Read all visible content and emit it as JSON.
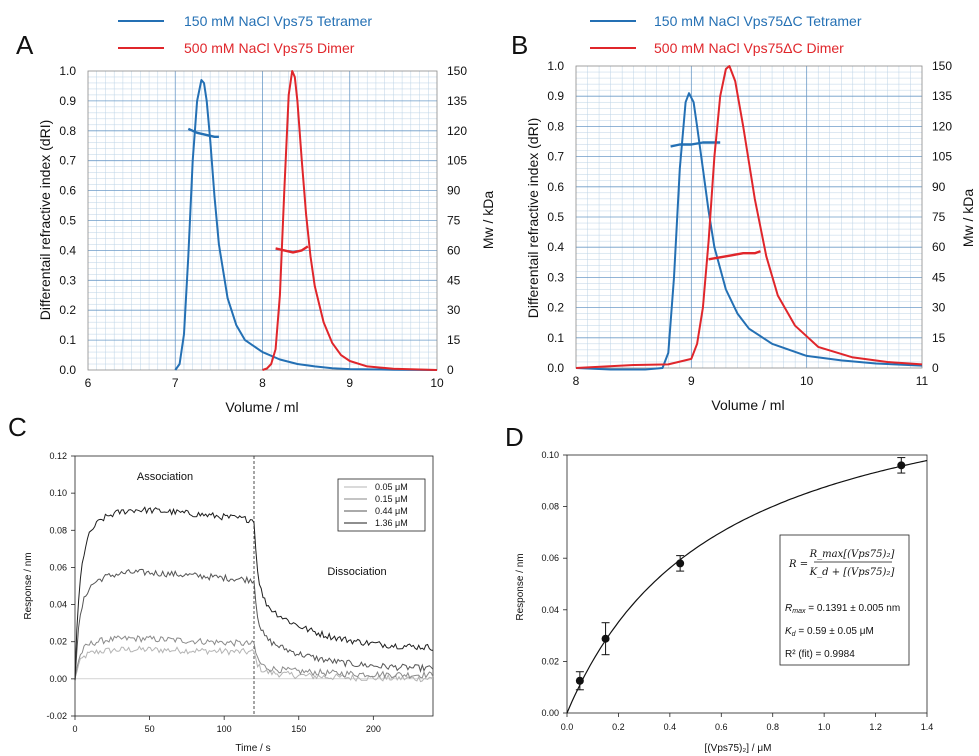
{
  "panels": {
    "A": {
      "label": "A",
      "legend": [
        {
          "text": "150 mM NaCl Vps75 Tetramer",
          "color": "#2470b4"
        },
        {
          "text": "500 mM NaCl Vps75 Dimer",
          "color": "#e0262b"
        }
      ],
      "xlabel": "Volume / ml",
      "ylabel": "Differentail refractive index (dRI)",
      "y2label": "Mw / kDa",
      "xticks": [
        "6",
        "7",
        "8",
        "9",
        "10"
      ],
      "yticks": [
        "0.0",
        "0.1",
        "0.2",
        "0.3",
        "0.4",
        "0.5",
        "0.6",
        "0.7",
        "0.8",
        "0.9",
        "1.0"
      ],
      "y2ticks": [
        "0",
        "15",
        "30",
        "45",
        "60",
        "75",
        "90",
        "105",
        "120",
        "135",
        "150"
      ]
    },
    "B": {
      "label": "B",
      "legend": [
        {
          "text": "150 mM NaCl Vps75ΔC Tetramer",
          "color": "#2470b4"
        },
        {
          "text": "500 mM NaCl Vps75ΔC Dimer",
          "color": "#e0262b"
        }
      ],
      "xlabel": "Volume / ml",
      "ylabel": "Differentail refractive index (dRI)",
      "y2label": "Mw / kDa",
      "xticks": [
        "8",
        "9",
        "10",
        "11"
      ],
      "yticks": [
        "0.0",
        "0.1",
        "0.2",
        "0.3",
        "0.4",
        "0.5",
        "0.6",
        "0.7",
        "0.8",
        "0.9",
        "1.0"
      ],
      "y2ticks": [
        "0",
        "15",
        "30",
        "45",
        "60",
        "75",
        "90",
        "105",
        "120",
        "135",
        "150"
      ]
    },
    "C": {
      "label": "C",
      "xlabel": "Time / s",
      "ylabel": "Response / nm",
      "xticks": [
        "0",
        "50",
        "100",
        "150",
        "200"
      ],
      "yticks": [
        "-0.02",
        "0.00",
        "0.02",
        "0.04",
        "0.06",
        "0.08",
        "0.10",
        "0.12"
      ],
      "association": "Association",
      "dissociation": "Dissociation",
      "legend": [
        {
          "text": "0.05 μM",
          "color": "#b4b4b4"
        },
        {
          "text": "0.15 μM",
          "color": "#8a8a8a"
        },
        {
          "text": "0.44 μM",
          "color": "#555555"
        },
        {
          "text": "1.36 μM",
          "color": "#1e1e1e"
        }
      ]
    },
    "D": {
      "label": "D",
      "xlabel": "[(Vps75)₂] / μM",
      "ylabel": "Response / nm",
      "xticks": [
        "0.0",
        "0.2",
        "0.4",
        "0.6",
        "0.8",
        "1.0",
        "1.2",
        "1.4"
      ],
      "yticks": [
        "0.00",
        "0.02",
        "0.04",
        "0.06",
        "0.08",
        "0.10"
      ],
      "formula": {
        "lhs": "R =",
        "num": "R_max[(Vps75)₂]",
        "den": "K_d + [(Vps75)₂]"
      },
      "fit": {
        "rmax_label": "R",
        "rmax_sub": "max",
        "rmax_value": " = 0.1391 ± 0.005 nm",
        "kd_label": "K",
        "kd_sub": "d",
        "kd_value": " = 0.59 ± 0.05 μM",
        "r2": "R² (fit) = 0.9984"
      }
    }
  },
  "chart_data": [
    {
      "type": "line",
      "title": "",
      "xlabel": "Volume / ml",
      "ylabel": "Differentail refractive index (dRI)",
      "y2label": "Mw / kDa",
      "xlim": [
        6,
        10
      ],
      "ylim": [
        0,
        1.0
      ],
      "y2lim": [
        0,
        150
      ],
      "grid": true,
      "series": [
        {
          "name": "150 mM NaCl Vps75 Tetramer",
          "axis": "dRI",
          "color": "#2470b4",
          "x": [
            7.0,
            7.05,
            7.1,
            7.15,
            7.2,
            7.25,
            7.3,
            7.33,
            7.36,
            7.4,
            7.45,
            7.5,
            7.6,
            7.7,
            7.8,
            8.0,
            8.2,
            8.4,
            8.6,
            8.8,
            9.0,
            9.5,
            10.0
          ],
          "y": [
            0.0,
            0.02,
            0.12,
            0.38,
            0.7,
            0.9,
            0.97,
            0.96,
            0.9,
            0.77,
            0.58,
            0.42,
            0.24,
            0.15,
            0.1,
            0.06,
            0.035,
            0.02,
            0.012,
            0.006,
            0.003,
            0.001,
            0.0
          ]
        },
        {
          "name": "150 mM NaCl Vps75 Tetramer",
          "axis": "Mw",
          "color": "#2470b4",
          "x": [
            7.15,
            7.25,
            7.35,
            7.45,
            7.5
          ],
          "y": [
            121,
            119,
            118,
            117,
            117
          ]
        },
        {
          "name": "500 mM NaCl Vps75 Dimer",
          "axis": "dRI",
          "color": "#e0262b",
          "x": [
            8.0,
            8.05,
            8.1,
            8.15,
            8.2,
            8.25,
            8.3,
            8.34,
            8.37,
            8.4,
            8.45,
            8.5,
            8.55,
            8.6,
            8.7,
            8.8,
            8.9,
            9.0,
            9.2,
            9.5,
            10.0
          ],
          "y": [
            0.0,
            0.005,
            0.02,
            0.07,
            0.25,
            0.6,
            0.92,
            1.0,
            0.98,
            0.9,
            0.7,
            0.52,
            0.38,
            0.28,
            0.16,
            0.09,
            0.05,
            0.03,
            0.012,
            0.004,
            0.0
          ]
        },
        {
          "name": "500 mM NaCl Vps75 Dimer",
          "axis": "Mw",
          "color": "#e0262b",
          "x": [
            8.15,
            8.25,
            8.35,
            8.45,
            8.52
          ],
          "y": [
            61,
            60,
            59,
            60,
            62
          ]
        }
      ]
    },
    {
      "type": "line",
      "title": "",
      "xlabel": "Volume / ml",
      "ylabel": "Differentail refractive index (dRI)",
      "y2label": "Mw / kDa",
      "xlim": [
        8,
        11
      ],
      "ylim": [
        0,
        1.0
      ],
      "y2lim": [
        0,
        150
      ],
      "grid": true,
      "series": [
        {
          "name": "150 mM NaCl Vps75ΔC Tetramer",
          "axis": "dRI",
          "color": "#2470b4",
          "x": [
            8.0,
            8.3,
            8.6,
            8.75,
            8.8,
            8.85,
            8.9,
            8.95,
            8.98,
            9.02,
            9.05,
            9.1,
            9.15,
            9.2,
            9.3,
            9.4,
            9.5,
            9.7,
            10.0,
            10.3,
            10.6,
            11.0
          ],
          "y": [
            0.0,
            -0.005,
            -0.005,
            0.0,
            0.05,
            0.3,
            0.66,
            0.88,
            0.91,
            0.88,
            0.8,
            0.66,
            0.52,
            0.4,
            0.26,
            0.18,
            0.13,
            0.08,
            0.04,
            0.025,
            0.015,
            0.008
          ]
        },
        {
          "name": "150 mM NaCl Vps75ΔC Tetramer",
          "axis": "Mw",
          "color": "#2470b4",
          "x": [
            8.82,
            8.9,
            9.0,
            9.1,
            9.2,
            9.25
          ],
          "y": [
            110,
            111,
            111,
            112,
            112,
            112
          ]
        },
        {
          "name": "500 mM NaCl Vps75ΔC Dimer",
          "axis": "dRI",
          "color": "#e0262b",
          "x": [
            8.0,
            8.5,
            8.8,
            9.0,
            9.05,
            9.1,
            9.15,
            9.2,
            9.25,
            9.3,
            9.33,
            9.38,
            9.45,
            9.55,
            9.65,
            9.75,
            9.9,
            10.1,
            10.4,
            10.7,
            11.0
          ],
          "y": [
            0.0,
            0.01,
            0.012,
            0.03,
            0.08,
            0.2,
            0.42,
            0.7,
            0.9,
            0.99,
            1.0,
            0.95,
            0.8,
            0.56,
            0.37,
            0.24,
            0.14,
            0.07,
            0.035,
            0.02,
            0.012
          ]
        },
        {
          "name": "500 mM NaCl Vps75ΔC Dimer",
          "axis": "Mw",
          "color": "#e0262b",
          "x": [
            9.15,
            9.25,
            9.35,
            9.45,
            9.55,
            9.6
          ],
          "y": [
            54,
            55,
            56,
            57,
            57,
            58
          ]
        }
      ]
    },
    {
      "type": "line",
      "title": "",
      "xlabel": "Time / s",
      "ylabel": "Response / nm",
      "xlim": [
        0,
        240
      ],
      "ylim": [
        -0.02,
        0.12
      ],
      "grid": false,
      "legend": "top-right",
      "association_end": 120,
      "series": [
        {
          "name": "0.05 μM",
          "color": "#b4b4b4",
          "plateau": 0.016,
          "fast": 0.011,
          "end": 0.0,
          "drop": 0.01
        },
        {
          "name": "0.15 μM",
          "color": "#8a8a8a",
          "plateau": 0.022,
          "fast": 0.03,
          "end": 0.002,
          "drop": 0.012
        },
        {
          "name": "0.44 μM",
          "color": "#555555",
          "plateau": 0.058,
          "fast": 0.066,
          "end": 0.005,
          "drop": 0.028
        },
        {
          "name": "1.36 μM",
          "color": "#1e1e1e",
          "plateau": 0.092,
          "fast": 0.094,
          "end": 0.016,
          "drop": 0.04
        }
      ]
    },
    {
      "type": "scatter",
      "title": "",
      "xlabel": "[(Vps75)₂] / μM",
      "ylabel": "Response / nm",
      "xlim": [
        0,
        1.4
      ],
      "ylim": [
        0,
        0.1
      ],
      "grid": false,
      "points": [
        {
          "x": 0.05,
          "y": 0.0125,
          "err": 0.0035
        },
        {
          "x": 0.15,
          "y": 0.0288,
          "err": 0.0062
        },
        {
          "x": 0.44,
          "y": 0.058,
          "err": 0.003
        },
        {
          "x": 1.3,
          "y": 0.096,
          "err": 0.003
        }
      ],
      "fit": {
        "model": "R = Rmax[(Vps75)2]/(Kd + [(Vps75)2])",
        "Rmax": 0.1391,
        "Kd": 0.59
      }
    }
  ]
}
